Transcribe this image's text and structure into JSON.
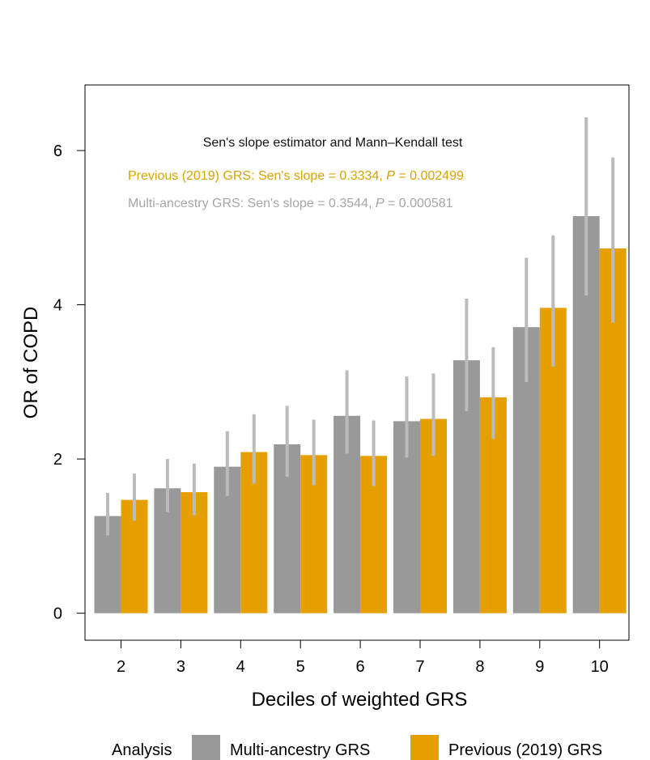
{
  "chart_data": {
    "type": "bar",
    "title": "",
    "xlabel": "Deciles of weighted GRS",
    "ylabel": "OR of COPD",
    "categories": [
      "2",
      "3",
      "4",
      "5",
      "6",
      "7",
      "8",
      "9",
      "10"
    ],
    "ylim": [
      -0.35,
      6.85
    ],
    "yticks": [
      0,
      2,
      4,
      6
    ],
    "grid": false,
    "series": [
      {
        "name": "Multi-ancestry GRS",
        "color": "#999999",
        "values": [
          1.26,
          1.62,
          1.9,
          2.19,
          2.56,
          2.49,
          3.28,
          3.71,
          5.15
        ],
        "ci_low": [
          1.01,
          1.31,
          1.52,
          1.77,
          2.07,
          2.02,
          2.62,
          3.0,
          4.12
        ],
        "ci_high": [
          1.56,
          2.0,
          2.36,
          2.69,
          3.15,
          3.07,
          4.08,
          4.61,
          6.43
        ]
      },
      {
        "name": "Previous (2019) GRS",
        "color": "#E69F00",
        "values": [
          1.47,
          1.57,
          2.09,
          2.05,
          2.04,
          2.52,
          2.8,
          3.96,
          4.73
        ],
        "ci_low": [
          1.2,
          1.27,
          1.68,
          1.66,
          1.65,
          2.04,
          2.26,
          3.2,
          3.77
        ],
        "ci_high": [
          1.81,
          1.94,
          2.58,
          2.51,
          2.5,
          3.11,
          3.45,
          4.9,
          5.91
        ]
      }
    ],
    "ci_color": "#BBBBBB",
    "annotations": {
      "heading": "Sen's slope estimator and Mann–Kendall test",
      "previous": {
        "prefix": "Previous (2019) GRS: Sen's slope = 0.3334, ",
        "p_symbol": "P",
        "suffix": " = 0.002499",
        "color": "#D9A300"
      },
      "multi": {
        "prefix": "Multi-ancestry GRS: Sen's slope = 0.3544, ",
        "p_symbol": "P",
        "suffix": " = 0.000581",
        "color": "#A6A6A6"
      }
    },
    "legend": {
      "title": "Analysis",
      "position": "bottom",
      "items": [
        "Multi-ancestry GRS",
        "Previous (2019) GRS"
      ]
    }
  }
}
